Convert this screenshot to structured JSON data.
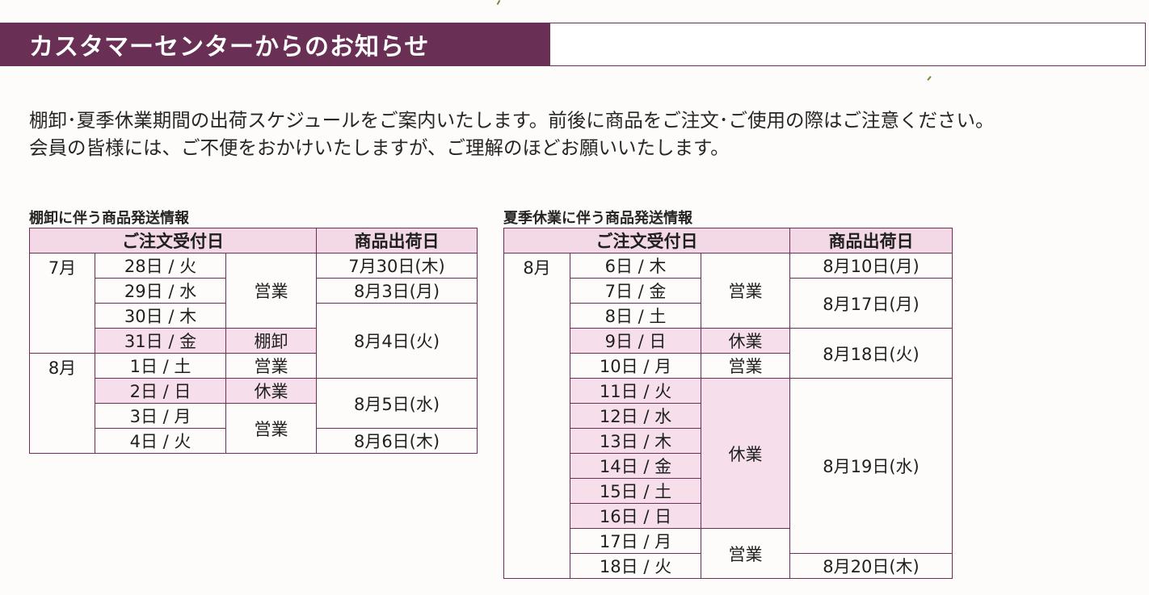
{
  "header": {
    "title": "カスタマーセンターからのお知らせ"
  },
  "intro": {
    "line1": "棚卸･夏季休業期間の出荷スケジュールをご案内いたします。前後に商品をご注文･ご使用の際はご注意ください。",
    "line2": "会員の皆様には、ご不便をおかけいたしますが、ご理解のほどお願いいたします。"
  },
  "table1": {
    "title": "棚卸に伴う商品発送情報",
    "header_order": "ご注文受付日",
    "header_ship": "商品出荷日",
    "months": [
      "7月",
      "8月"
    ],
    "days": [
      "28日 / 火",
      "29日 / 水",
      "30日 / 木",
      "31日 / 金",
      "1日 / 土",
      "2日 / 日",
      "3日 / 月",
      "4日 / 火"
    ],
    "status": [
      "営業",
      "棚卸",
      "営業",
      "休業",
      "営業"
    ],
    "ship": [
      "7月30日(木)",
      "8月3日(月)",
      "8月4日(火)",
      "8月5日(水)",
      "8月6日(木)"
    ]
  },
  "table2": {
    "title": "夏季休業に伴う商品発送情報",
    "header_order": "ご注文受付日",
    "header_ship": "商品出荷日",
    "months": [
      "8月"
    ],
    "days": [
      "6日 / 木",
      "7日 / 金",
      "8日 / 土",
      "9日 / 日",
      "10日 / 月",
      "11日 / 火",
      "12日 / 水",
      "13日 / 木",
      "14日 / 金",
      "15日 / 土",
      "16日 / 日",
      "17日 / 月",
      "18日 / 火"
    ],
    "status": [
      "営業",
      "休業",
      "営業",
      "休業",
      "営業"
    ],
    "ship": [
      "8月10日(月)",
      "8月17日(月)",
      "8月18日(火)",
      "8月19日(水)",
      "8月20日(木)"
    ]
  },
  "colors": {
    "accent": "#6a2f55",
    "highlight": "#f6dfea"
  }
}
